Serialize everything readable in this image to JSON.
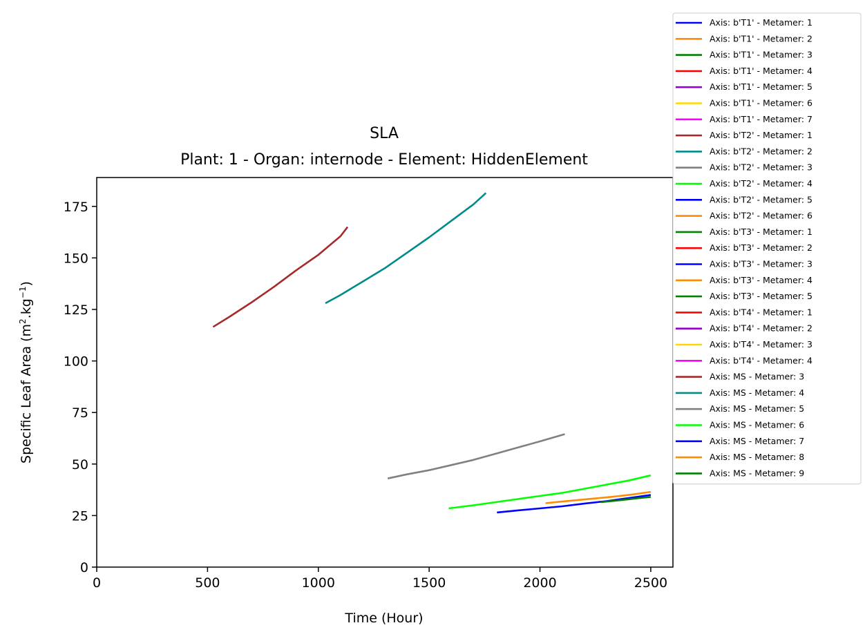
{
  "chart_data": {
    "type": "line",
    "title": "SLA",
    "subtitle": "Plant: 1 - Organ: internode - Element: HiddenElement",
    "xlabel": "Time (Hour)",
    "ylabel": {
      "prefix": "Specific Leaf Area (m",
      "sup1": "2",
      "mid": ".kg",
      "sup2": "−1",
      "suffix": ")"
    },
    "xlim": [
      0,
      2600
    ],
    "ylim": [
      0,
      189
    ],
    "xticks": [
      0,
      500,
      1000,
      1500,
      2000,
      2500
    ],
    "yticks": [
      0,
      25,
      50,
      75,
      100,
      125,
      150,
      175
    ],
    "grid": false,
    "legend_position": "outside-top-right",
    "series": [
      {
        "name": "Axis: b'T1' - Metamer: 1",
        "color": "#0000ff",
        "x": [],
        "y": []
      },
      {
        "name": "Axis: b'T1' - Metamer: 2",
        "color": "#ff8c00",
        "x": [],
        "y": []
      },
      {
        "name": "Axis: b'T1' - Metamer: 3",
        "color": "#008000",
        "x": [],
        "y": []
      },
      {
        "name": "Axis: b'T1' - Metamer: 4",
        "color": "#ff0000",
        "x": [],
        "y": []
      },
      {
        "name": "Axis: b'T1' - Metamer: 5",
        "color": "#9400d3",
        "x": [],
        "y": []
      },
      {
        "name": "Axis: b'T1' - Metamer: 6",
        "color": "#ffd700",
        "x": [],
        "y": []
      },
      {
        "name": "Axis: b'T1' - Metamer: 7",
        "color": "#ff00ff",
        "x": [],
        "y": []
      },
      {
        "name": "Axis: b'T2' - Metamer: 1",
        "color": "#a52a2a",
        "x": [],
        "y": []
      },
      {
        "name": "Axis: b'T2' - Metamer: 2",
        "color": "#008b8b",
        "x": [],
        "y": []
      },
      {
        "name": "Axis: b'T2' - Metamer: 3",
        "color": "#808080",
        "x": [],
        "y": []
      },
      {
        "name": "Axis: b'T2' - Metamer: 4",
        "color": "#00ff00",
        "x": [],
        "y": []
      },
      {
        "name": "Axis: b'T2' - Metamer: 5",
        "color": "#0000ff",
        "x": [],
        "y": []
      },
      {
        "name": "Axis: b'T2' - Metamer: 6",
        "color": "#ff8c00",
        "x": [],
        "y": []
      },
      {
        "name": "Axis: b'T3' - Metamer: 1",
        "color": "#008000",
        "x": [],
        "y": []
      },
      {
        "name": "Axis: b'T3' - Metamer: 2",
        "color": "#ff0000",
        "x": [],
        "y": []
      },
      {
        "name": "Axis: b'T3' - Metamer: 3",
        "color": "#0000ff",
        "x": [],
        "y": []
      },
      {
        "name": "Axis: b'T3' - Metamer: 4",
        "color": "#ff8c00",
        "x": [],
        "y": []
      },
      {
        "name": "Axis: b'T3' - Metamer: 5",
        "color": "#008000",
        "x": [],
        "y": []
      },
      {
        "name": "Axis: b'T4' - Metamer: 1",
        "color": "#ff0000",
        "x": [],
        "y": []
      },
      {
        "name": "Axis: b'T4' - Metamer: 2",
        "color": "#9400d3",
        "x": [],
        "y": []
      },
      {
        "name": "Axis: b'T4' - Metamer: 3",
        "color": "#ffd700",
        "x": [],
        "y": []
      },
      {
        "name": "Axis: b'T4' - Metamer: 4",
        "color": "#ff00ff",
        "x": [],
        "y": []
      },
      {
        "name": "Axis: MS - Metamer: 3",
        "color": "#a52a2a",
        "x": [
          525,
          600,
          700,
          800,
          900,
          1000,
          1100,
          1132
        ],
        "y": [
          116.5,
          121.5,
          128.5,
          136,
          144,
          151.5,
          160.5,
          165
        ]
      },
      {
        "name": "Axis: MS - Metamer: 4",
        "color": "#008b8b",
        "x": [
          1032,
          1100,
          1200,
          1300,
          1400,
          1500,
          1600,
          1700,
          1756
        ],
        "y": [
          128,
          132,
          138.5,
          145,
          152.5,
          160,
          168,
          176,
          181.5
        ]
      },
      {
        "name": "Axis: MS - Metamer: 5",
        "color": "#808080",
        "x": [
          1313,
          1400,
          1500,
          1600,
          1700,
          1800,
          1900,
          2000,
          2112
        ],
        "y": [
          43,
          45,
          47,
          49.5,
          52,
          55,
          58,
          61,
          64.5
        ]
      },
      {
        "name": "Axis: MS - Metamer: 6",
        "color": "#00ff00",
        "x": [
          1588,
          1700,
          1800,
          1900,
          2000,
          2100,
          2200,
          2300,
          2400,
          2500
        ],
        "y": [
          28.5,
          30,
          31.5,
          33,
          34.5,
          36,
          38,
          40,
          42,
          44.5
        ]
      },
      {
        "name": "Axis: MS - Metamer: 7",
        "color": "#0000ff",
        "x": [
          1806,
          1900,
          2000,
          2100,
          2200,
          2300,
          2400,
          2500
        ],
        "y": [
          26.5,
          27.5,
          28.5,
          29.5,
          30.8,
          32,
          33.5,
          35
        ]
      },
      {
        "name": "Axis: MS - Metamer: 8",
        "color": "#ff8c00",
        "x": [
          2025,
          2100,
          2200,
          2300,
          2400,
          2500
        ],
        "y": [
          31,
          31.8,
          32.8,
          33.8,
          35,
          36.5
        ]
      },
      {
        "name": "Axis: MS - Metamer: 9",
        "color": "#008000",
        "x": [
          2275,
          2350,
          2400,
          2450,
          2500
        ],
        "y": [
          31.5,
          32.3,
          32.9,
          33.5,
          34
        ]
      }
    ]
  }
}
